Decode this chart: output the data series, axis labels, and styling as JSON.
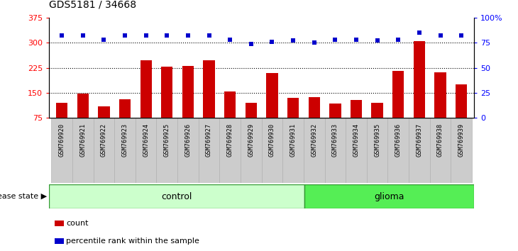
{
  "title": "GDS5181 / 34668",
  "samples": [
    "GSM769920",
    "GSM769921",
    "GSM769922",
    "GSM769923",
    "GSM769924",
    "GSM769925",
    "GSM769926",
    "GSM769927",
    "GSM769928",
    "GSM769929",
    "GSM769930",
    "GSM769931",
    "GSM769932",
    "GSM769933",
    "GSM769934",
    "GSM769935",
    "GSM769936",
    "GSM769937",
    "GSM769938",
    "GSM769939"
  ],
  "counts": [
    120,
    148,
    110,
    130,
    248,
    228,
    230,
    248,
    155,
    120,
    210,
    135,
    138,
    118,
    128,
    120,
    215,
    305,
    212,
    175
  ],
  "percentile_ranks": [
    82,
    82,
    78,
    82,
    82,
    82,
    82,
    82,
    78,
    74,
    76,
    77,
    75,
    78,
    78,
    77,
    78,
    85,
    82,
    82
  ],
  "control_count": 12,
  "glioma_count": 8,
  "bar_color": "#cc0000",
  "dot_color": "#0000cc",
  "control_color": "#ccffcc",
  "glioma_color": "#55ee55",
  "tick_bg_color": "#cccccc",
  "left_yticks": [
    75,
    150,
    225,
    300,
    375
  ],
  "right_yticks": [
    0,
    25,
    50,
    75,
    100
  ],
  "right_yticklabels": [
    "0",
    "25",
    "50",
    "75",
    "100%"
  ],
  "ylim_left": [
    75,
    375
  ],
  "ylim_right": [
    0,
    100
  ],
  "hlines": [
    150,
    225,
    300
  ],
  "count_label": "count",
  "percentile_label": "percentile rank within the sample",
  "disease_label": "disease state",
  "control_label": "control",
  "glioma_label": "glioma"
}
